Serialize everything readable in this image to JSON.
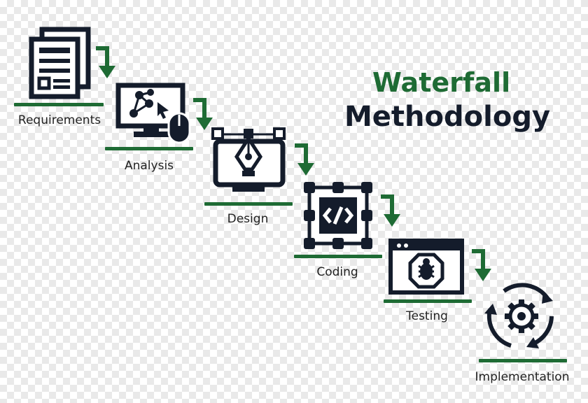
{
  "title": {
    "line1": "Waterfall",
    "line2": "Methodology"
  },
  "colors": {
    "accent": "#1e6b34",
    "dark": "#141c2b"
  },
  "steps": [
    {
      "label": "Requirements",
      "icon": "documents-icon"
    },
    {
      "label": "Analysis",
      "icon": "analysis-monitor-icon"
    },
    {
      "label": "Design",
      "icon": "design-pen-monitor-icon"
    },
    {
      "label": "Coding",
      "icon": "code-icon"
    },
    {
      "label": "Testing",
      "icon": "bug-window-icon"
    },
    {
      "label": "Implementation",
      "icon": "gear-cycle-icon"
    }
  ]
}
